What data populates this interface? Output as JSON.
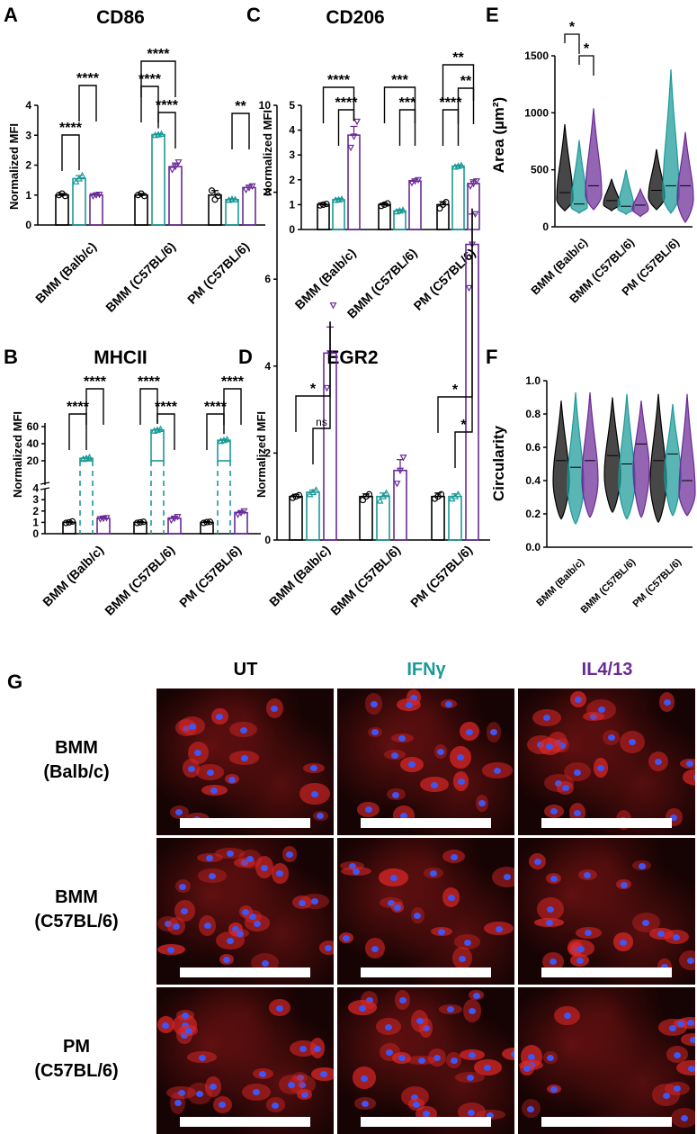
{
  "colors": {
    "ut": "#000000",
    "ifn": "#1a9a98",
    "il4": "#6a2a96",
    "cell_bg": "#160303",
    "nucleus": "#3f56f2"
  },
  "icons": {
    "scale_bar": "white-rectangle-scale-bar"
  },
  "bar_panels": [
    {
      "id": "A",
      "letter": "A",
      "title": "CD86",
      "ylabel": "Normalized MFI",
      "ticks": [
        "0",
        "1",
        "2",
        "3",
        "4"
      ],
      "groups": [
        "BMM (Balb/c)",
        "BMM (C57BL/6)",
        "PM (C57BL/6)"
      ],
      "sig": [
        "****",
        "****",
        "****",
        "****",
        "****",
        "**"
      ]
    },
    {
      "id": "C",
      "letter": "C",
      "title": "CD206",
      "ylabel": "Normalized MFI",
      "ticks": [
        "0",
        "1",
        "2",
        "3",
        "4",
        "5"
      ],
      "groups": [
        "BMM (Balb/c)",
        "BMM (C57BL/6)",
        "PM (C57BL/6)"
      ],
      "sig": [
        "****",
        "****",
        "***",
        "***",
        "**",
        "**",
        "****"
      ]
    },
    {
      "id": "B",
      "letter": "B",
      "title": "MHCII",
      "ylabel": "Normalized MFI",
      "ticks": [
        "0",
        "1",
        "2",
        "3",
        "4",
        "20",
        "40",
        "60"
      ],
      "groups": [
        "BMM (Balb/c)",
        "BMM (C57BL/6)",
        "PM (C57BL/6)"
      ],
      "sig": [
        "****",
        "****",
        "****",
        "****",
        "****",
        "****"
      ]
    },
    {
      "id": "D",
      "letter": "D",
      "title": "EGR2",
      "ylabel": "Normalized MFI",
      "ticks": [
        "0",
        "2",
        "4",
        "6",
        "8",
        "10"
      ],
      "groups": [
        "BMM (Balb/c)",
        "BMM (C57BL/6)",
        "PM (C57BL/6)"
      ],
      "sig": [
        "*",
        "ns",
        "*",
        "*"
      ]
    }
  ],
  "violin_panels": [
    {
      "id": "E",
      "letter": "E",
      "ylabel": "Area (µm²)",
      "ticks": [
        "0",
        "500",
        "1000",
        "1500"
      ],
      "groups": [
        "BMM (Balb/c)",
        "BMM (C57BL/6)",
        "PM (C57BL/6)"
      ],
      "sig": [
        "*",
        "*"
      ]
    },
    {
      "id": "F",
      "letter": "F",
      "ylabel": "Circularity",
      "ticks": [
        "0.0",
        "0.2",
        "0.4",
        "0.6",
        "0.8",
        "1.0"
      ],
      "groups": [
        "BMM (Balb/c)",
        "BMM (C57BL/6)",
        "PM (C57BL/6)"
      ],
      "sig": []
    }
  ],
  "chart_data": [
    {
      "panel": "A",
      "type": "bar",
      "title": "CD86",
      "ylabel": "Normalized MFI",
      "ylim": [
        0,
        4
      ],
      "categories": [
        "BMM (Balb/c)",
        "BMM (C57BL/6)",
        "PM (C57BL/6)"
      ],
      "series": [
        {
          "values": [
            1.0,
            1.0,
            1.0
          ],
          "error": [
            0.05,
            0.05,
            0.15
          ],
          "points": [
            [
              1.0,
              1.05,
              0.97
            ],
            [
              1.0,
              1.05,
              0.97
            ],
            [
              1.15,
              0.85,
              0.97
            ]
          ]
        },
        {
          "values": [
            1.55,
            3.02,
            0.85
          ],
          "error": [
            0.1,
            0.03,
            0.03
          ],
          "points": [
            [
              1.45,
              1.55,
              1.65
            ],
            [
              3.0,
              3.02,
              3.04
            ],
            [
              0.83,
              0.86,
              0.85
            ]
          ]
        },
        {
          "values": [
            1.0,
            1.95,
            1.25
          ],
          "error": [
            0.05,
            0.12,
            0.08
          ],
          "points": [
            [
              0.97,
              1.0,
              1.02
            ],
            [
              1.85,
              1.95,
              2.1
            ],
            [
              1.18,
              1.25,
              1.3
            ]
          ]
        }
      ],
      "comparisons": [
        {
          "from": [
            0,
            0
          ],
          "to": [
            0,
            1
          ],
          "label": "****"
        },
        {
          "from": [
            0,
            1
          ],
          "to": [
            0,
            2
          ],
          "label": "****"
        },
        {
          "from": [
            1,
            0
          ],
          "to": [
            1,
            1
          ],
          "label": "****"
        },
        {
          "from": [
            1,
            1
          ],
          "to": [
            1,
            2
          ],
          "label": "****"
        },
        {
          "from": [
            1,
            0
          ],
          "to": [
            1,
            2
          ],
          "label": "****"
        },
        {
          "from": [
            2,
            1
          ],
          "to": [
            2,
            2
          ],
          "label": "**"
        }
      ]
    },
    {
      "panel": "C",
      "type": "bar",
      "title": "CD206",
      "ylabel": "Normalized MFI",
      "ylim": [
        0,
        5
      ],
      "categories": [
        "BMM (Balb/c)",
        "BMM (C57BL/6)",
        "PM (C57BL/6)"
      ],
      "series": [
        {
          "values": [
            1.0,
            1.0,
            1.0
          ],
          "error": [
            0.04,
            0.06,
            0.12
          ],
          "points": [
            [
              0.97,
              1.0,
              1.03
            ],
            [
              0.95,
              1.0,
              1.05
            ],
            [
              0.85,
              1.0,
              1.1
            ]
          ]
        },
        {
          "values": [
            1.2,
            0.75,
            2.55
          ],
          "error": [
            0.05,
            0.05,
            0.04
          ],
          "points": [
            [
              1.18,
              1.2,
              1.22
            ],
            [
              0.72,
              0.75,
              0.78
            ],
            [
              2.52,
              2.55,
              2.58
            ]
          ]
        },
        {
          "values": [
            3.8,
            1.95,
            1.85
          ],
          "error": [
            0.35,
            0.08,
            0.15
          ],
          "points": [
            [
              3.3,
              3.75,
              4.35
            ],
            [
              1.88,
              1.95,
              2.0
            ],
            [
              1.75,
              1.85,
              1.95
            ]
          ]
        }
      ],
      "comparisons": [
        {
          "from": [
            0,
            0
          ],
          "to": [
            0,
            2
          ],
          "label": "****"
        },
        {
          "from": [
            0,
            1
          ],
          "to": [
            0,
            2
          ],
          "label": "****"
        },
        {
          "from": [
            1,
            0
          ],
          "to": [
            1,
            2
          ],
          "label": "***"
        },
        {
          "from": [
            1,
            1
          ],
          "to": [
            1,
            2
          ],
          "label": "***"
        },
        {
          "from": [
            2,
            0
          ],
          "to": [
            2,
            2
          ],
          "label": "**"
        },
        {
          "from": [
            2,
            1
          ],
          "to": [
            2,
            2
          ],
          "label": "**"
        },
        {
          "from": [
            2,
            0
          ],
          "to": [
            2,
            1
          ],
          "label": "****"
        }
      ]
    },
    {
      "panel": "B",
      "type": "bar",
      "title": "MHCII",
      "ylabel": "Normalized MFI",
      "yaxis": "broken",
      "ylim": [
        0,
        60
      ],
      "categories": [
        "BMM (Balb/c)",
        "BMM (C57BL/6)",
        "PM (C57BL/6)"
      ],
      "series": [
        {
          "values": [
            1.0,
            1.0,
            1.0
          ],
          "error": [
            0.08,
            0.06,
            0.08
          ],
          "points": [
            [
              0.95,
              1.0,
              1.08
            ],
            [
              0.95,
              1.0,
              1.05
            ],
            [
              0.95,
              1.02,
              1.05
            ]
          ]
        },
        {
          "values": [
            23,
            56,
            44
          ],
          "error": [
            1.0,
            1.0,
            1.0
          ],
          "points": [
            [
              22,
              23,
              24
            ],
            [
              55,
              56,
              57
            ],
            [
              43,
              44,
              45
            ]
          ]
        },
        {
          "values": [
            1.35,
            1.35,
            1.85
          ],
          "error": [
            0.08,
            0.15,
            0.12
          ],
          "points": [
            [
              1.3,
              1.35,
              1.4
            ],
            [
              1.2,
              1.35,
              1.5
            ],
            [
              1.7,
              1.85,
              2.0
            ]
          ]
        }
      ],
      "comparisons": [
        {
          "from": [
            0,
            0
          ],
          "to": [
            0,
            1
          ],
          "label": "****"
        },
        {
          "from": [
            0,
            1
          ],
          "to": [
            0,
            2
          ],
          "label": "****"
        },
        {
          "from": [
            1,
            0
          ],
          "to": [
            1,
            1
          ],
          "label": "****"
        },
        {
          "from": [
            1,
            1
          ],
          "to": [
            1,
            2
          ],
          "label": "****"
        },
        {
          "from": [
            2,
            0
          ],
          "to": [
            2,
            1
          ],
          "label": "****"
        },
        {
          "from": [
            2,
            1
          ],
          "to": [
            2,
            2
          ],
          "label": "****"
        }
      ]
    },
    {
      "panel": "D",
      "type": "bar",
      "title": "EGR2",
      "ylabel": "Normalized MFI",
      "ylim": [
        0,
        10
      ],
      "categories": [
        "BMM (Balb/c)",
        "BMM (C57BL/6)",
        "PM (C57BL/6)"
      ],
      "series": [
        {
          "values": [
            1.0,
            1.0,
            1.0
          ],
          "error": [
            0.05,
            0.06,
            0.08
          ],
          "points": [
            [
              0.97,
              1.0,
              1.03
            ],
            [
              0.92,
              1.0,
              1.05
            ],
            [
              0.95,
              1.0,
              1.05
            ]
          ]
        },
        {
          "values": [
            1.1,
            1.0,
            1.0
          ],
          "error": [
            0.05,
            0.08,
            0.06
          ],
          "points": [
            [
              1.05,
              1.1,
              1.15
            ],
            [
              0.9,
              1.0,
              1.08
            ],
            [
              0.95,
              1.0,
              1.05
            ]
          ]
        },
        {
          "values": [
            4.3,
            1.6,
            6.8
          ],
          "error": [
            0.6,
            0.25,
            0.7
          ],
          "points": [
            [
              3.5,
              4.3,
              5.4
            ],
            [
              1.3,
              1.6,
              1.9
            ],
            [
              5.8,
              6.8,
              7.5
            ]
          ]
        }
      ],
      "comparisons": [
        {
          "from": [
            0,
            0
          ],
          "to": [
            0,
            2
          ],
          "label": "*"
        },
        {
          "from": [
            0,
            1
          ],
          "to": [
            0,
            2
          ],
          "label": "ns"
        },
        {
          "from": [
            2,
            0
          ],
          "to": [
            2,
            2
          ],
          "label": "*"
        },
        {
          "from": [
            2,
            1
          ],
          "to": [
            2,
            2
          ],
          "label": "*"
        }
      ]
    },
    {
      "panel": "E",
      "type": "violin",
      "ylabel": "Area (µm²)",
      "ylim": [
        0,
        1500
      ],
      "categories": [
        "BMM (Balb/c)",
        "BMM (C57BL/6)",
        "PM (C57BL/6)"
      ],
      "series": [
        {
          "ranges": [
            [
              140,
              900
            ],
            [
              140,
              420
            ],
            [
              150,
              680
            ]
          ],
          "medians": [
            300,
            230,
            320
          ]
        },
        {
          "ranges": [
            [
              120,
              760
            ],
            [
              110,
              500
            ],
            [
              120,
              1380
            ]
          ],
          "medians": [
            200,
            180,
            360
          ]
        },
        {
          "ranges": [
            [
              150,
              1040
            ],
            [
              90,
              330
            ],
            [
              40,
              830
            ]
          ],
          "medians": [
            360,
            190,
            360
          ]
        }
      ],
      "comparisons": [
        {
          "from": [
            0,
            0
          ],
          "to": [
            0,
            1
          ],
          "label": "*"
        },
        {
          "from": [
            0,
            1
          ],
          "to": [
            0,
            2
          ],
          "label": "*"
        }
      ]
    },
    {
      "panel": "F",
      "type": "violin",
      "ylabel": "Circularity",
      "ylim": [
        0,
        1.0
      ],
      "categories": [
        "BMM (Balb/c)",
        "BMM (C57BL/6)",
        "PM (C57BL/6)"
      ],
      "series": [
        {
          "ranges": [
            [
              0.17,
              0.88
            ],
            [
              0.21,
              0.9
            ],
            [
              0.15,
              0.92
            ]
          ],
          "medians": [
            0.52,
            0.55,
            0.52
          ]
        },
        {
          "ranges": [
            [
              0.14,
              0.93
            ],
            [
              0.17,
              0.92
            ],
            [
              0.19,
              0.86
            ]
          ],
          "medians": [
            0.48,
            0.5,
            0.56
          ]
        },
        {
          "ranges": [
            [
              0.18,
              0.93
            ],
            [
              0.18,
              0.88
            ],
            [
              0.19,
              0.92
            ]
          ],
          "medians": [
            0.52,
            0.62,
            0.4
          ]
        }
      ],
      "comparisons": []
    }
  ],
  "panel_g": {
    "letter": "G",
    "columns": [
      "UT",
      "IFNγ",
      "IL4/13"
    ],
    "rows": [
      {
        "line1": "BMM",
        "line2": "(Balb/c)"
      },
      {
        "line1": "BMM",
        "line2": "(C57BL/6)"
      },
      {
        "line1": "PM",
        "line2": "(C57BL/6)"
      }
    ]
  }
}
